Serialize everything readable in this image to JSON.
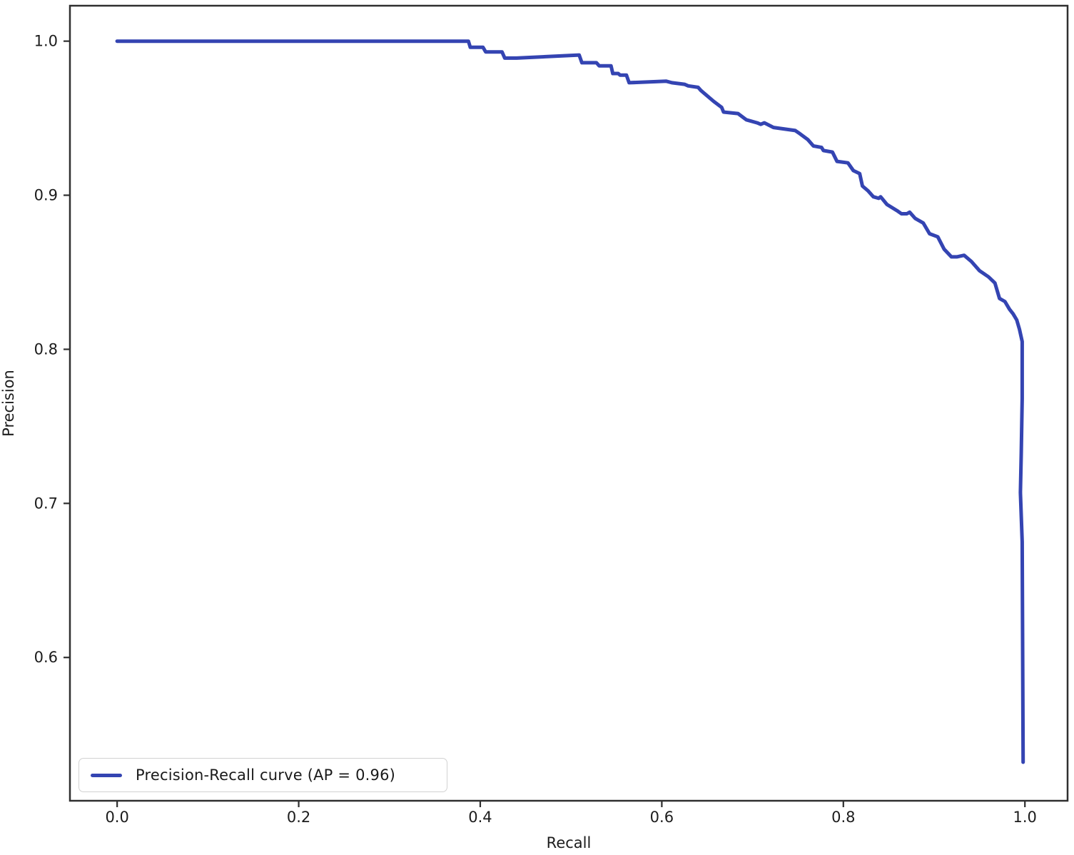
{
  "figure": {
    "background": "#ffffff",
    "frame_color": "#2f2f2f",
    "tick_color": "#2f2f2f",
    "label_color": "#1c1c1c"
  },
  "chart_data": {
    "type": "line",
    "title": "",
    "xlabel": "Recall",
    "ylabel": "Precision",
    "xlim": [
      -0.052,
      1.047
    ],
    "ylim": [
      0.507,
      1.023
    ],
    "x_ticks": [
      0.0,
      0.2,
      0.4,
      0.6,
      0.8,
      1.0
    ],
    "y_ticks": [
      0.6,
      0.7,
      0.8,
      0.9,
      1.0
    ],
    "grid": false,
    "legend_position": "lower left",
    "series": [
      {
        "name": "Precision-Recall curve (AP = 0.96)",
        "ap": 0.96,
        "color": "#3444b2",
        "line_width": 5,
        "points": [
          [
            0.0,
            1.0
          ],
          [
            0.387,
            1.0
          ],
          [
            0.389,
            0.996
          ],
          [
            0.403,
            0.996
          ],
          [
            0.406,
            0.993
          ],
          [
            0.424,
            0.993
          ],
          [
            0.427,
            0.989
          ],
          [
            0.44,
            0.989
          ],
          [
            0.509,
            0.991
          ],
          [
            0.512,
            0.986
          ],
          [
            0.528,
            0.986
          ],
          [
            0.531,
            0.984
          ],
          [
            0.544,
            0.984
          ],
          [
            0.546,
            0.979
          ],
          [
            0.552,
            0.979
          ],
          [
            0.554,
            0.978
          ],
          [
            0.561,
            0.978
          ],
          [
            0.564,
            0.973
          ],
          [
            0.605,
            0.974
          ],
          [
            0.611,
            0.973
          ],
          [
            0.625,
            0.972
          ],
          [
            0.629,
            0.971
          ],
          [
            0.64,
            0.97
          ],
          [
            0.643,
            0.968
          ],
          [
            0.649,
            0.965
          ],
          [
            0.657,
            0.961
          ],
          [
            0.666,
            0.957
          ],
          [
            0.668,
            0.954
          ],
          [
            0.684,
            0.953
          ],
          [
            0.693,
            0.949
          ],
          [
            0.705,
            0.947
          ],
          [
            0.709,
            0.946
          ],
          [
            0.713,
            0.947
          ],
          [
            0.723,
            0.944
          ],
          [
            0.747,
            0.942
          ],
          [
            0.752,
            0.94
          ],
          [
            0.761,
            0.936
          ],
          [
            0.767,
            0.932
          ],
          [
            0.776,
            0.931
          ],
          [
            0.778,
            0.929
          ],
          [
            0.788,
            0.928
          ],
          [
            0.793,
            0.922
          ],
          [
            0.805,
            0.921
          ],
          [
            0.811,
            0.916
          ],
          [
            0.818,
            0.914
          ],
          [
            0.821,
            0.906
          ],
          [
            0.827,
            0.903
          ],
          [
            0.833,
            0.899
          ],
          [
            0.839,
            0.898
          ],
          [
            0.841,
            0.899
          ],
          [
            0.848,
            0.894
          ],
          [
            0.859,
            0.89
          ],
          [
            0.864,
            0.888
          ],
          [
            0.87,
            0.888
          ],
          [
            0.873,
            0.889
          ],
          [
            0.879,
            0.885
          ],
          [
            0.888,
            0.882
          ],
          [
            0.895,
            0.875
          ],
          [
            0.904,
            0.873
          ],
          [
            0.911,
            0.865
          ],
          [
            0.919,
            0.86
          ],
          [
            0.925,
            0.86
          ],
          [
            0.933,
            0.861
          ],
          [
            0.941,
            0.857
          ],
          [
            0.95,
            0.851
          ],
          [
            0.96,
            0.847
          ],
          [
            0.967,
            0.843
          ],
          [
            0.972,
            0.833
          ],
          [
            0.978,
            0.831
          ],
          [
            0.983,
            0.826
          ],
          [
            0.987,
            0.823
          ],
          [
            0.991,
            0.819
          ],
          [
            0.994,
            0.813
          ],
          [
            0.997,
            0.805
          ],
          [
            0.997,
            0.768
          ],
          [
            0.996,
            0.733
          ],
          [
            0.995,
            0.707
          ],
          [
            0.997,
            0.675
          ],
          [
            0.998,
            0.532
          ]
        ]
      }
    ]
  },
  "legend": {
    "label": "Precision-Recall curve (AP = 0.96)"
  }
}
